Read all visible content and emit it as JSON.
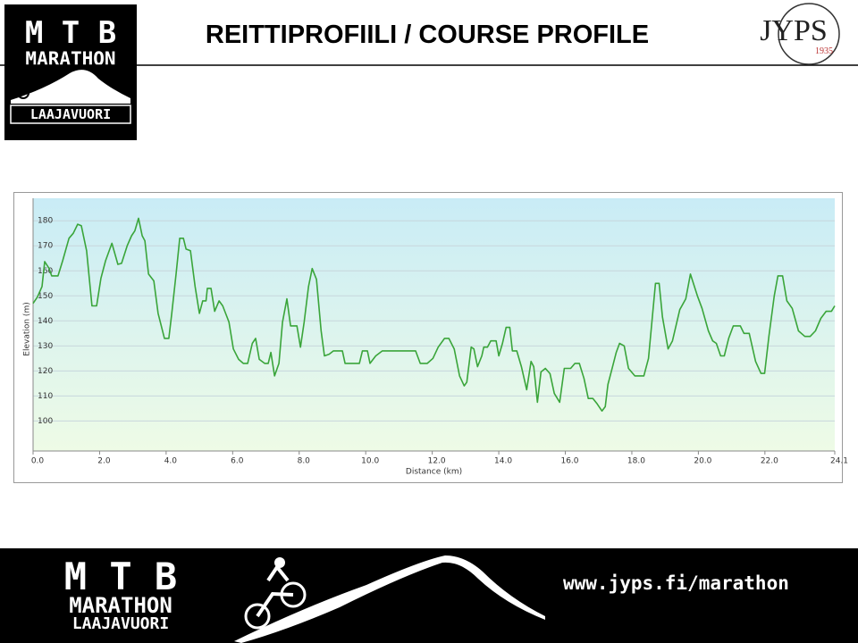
{
  "header": {
    "title": "REITTIPROFIILI / COURSE PROFILE",
    "logo": {
      "line1": "M T B",
      "line2": "MARATHON",
      "line3": "LAAJAVUORI"
    },
    "club": {
      "name": "JYPS",
      "year": "1935"
    }
  },
  "chart_data": {
    "type": "line",
    "xlabel": "Distance (km)",
    "ylabel": "Elevation (m)",
    "color": "#3aa53a",
    "grid": true,
    "xlim": [
      0,
      24.1
    ],
    "ylim": [
      88,
      189
    ],
    "xticks": [
      {
        "value": 0,
        "label": "0.0"
      },
      {
        "value": 2,
        "label": "2.0"
      },
      {
        "value": 4,
        "label": "4.0"
      },
      {
        "value": 6,
        "label": "6.0"
      },
      {
        "value": 8,
        "label": "8.0"
      },
      {
        "value": 10,
        "label": "10.0"
      },
      {
        "value": 12,
        "label": "12.0"
      },
      {
        "value": 14,
        "label": "14.0"
      },
      {
        "value": 16,
        "label": "16.0"
      },
      {
        "value": 18,
        "label": "18.0"
      },
      {
        "value": 20,
        "label": "20.0"
      },
      {
        "value": 22,
        "label": "22.0"
      },
      24.1
    ],
    "yticks": [
      100,
      110,
      120,
      130,
      140,
      150,
      160,
      170,
      180
    ],
    "x": [
      0,
      0.13,
      0.27,
      0.35,
      0.48,
      0.56,
      0.75,
      0.89,
      1.08,
      1.21,
      1.34,
      1.45,
      1.61,
      1.77,
      1.91,
      2.04,
      2.18,
      2.37,
      2.55,
      2.66,
      2.83,
      2.96,
      3.06,
      3.17,
      3.28,
      3.36,
      3.47,
      3.63,
      3.76,
      3.95,
      4.08,
      4.17,
      4.3,
      4.41,
      4.52,
      4.6,
      4.73,
      4.87,
      5.0,
      5.1,
      5.2,
      5.24,
      5.35,
      5.46,
      5.59,
      5.7,
      5.89,
      6.02,
      6.18,
      6.32,
      6.45,
      6.59,
      6.69,
      6.8,
      6.96,
      7.07,
      7.15,
      7.26,
      7.39,
      7.5,
      7.63,
      7.74,
      7.93,
      8.04,
      8.15,
      8.28,
      8.39,
      8.52,
      8.66,
      8.76,
      8.9,
      9.03,
      9.3,
      9.38,
      9.7,
      9.81,
      9.9,
      10.05,
      10.13,
      10.3,
      10.5,
      11.5,
      11.64,
      11.85,
      12.02,
      12.18,
      12.37,
      12.5,
      12.66,
      12.82,
      12.96,
      13.04,
      13.17,
      13.25,
      13.36,
      13.49,
      13.55,
      13.66,
      13.76,
      13.92,
      14.0,
      14.11,
      14.22,
      14.33,
      14.41,
      14.54,
      14.68,
      14.84,
      14.97,
      15.05,
      15.16,
      15.27,
      15.4,
      15.54,
      15.67,
      15.83,
      15.97,
      16.16,
      16.29,
      16.42,
      16.56,
      16.69,
      16.83,
      16.96,
      17.1,
      17.2,
      17.28,
      17.42,
      17.53,
      17.63,
      17.77,
      17.9,
      18.09,
      18.36,
      18.5,
      18.71,
      18.82,
      18.92,
      19.09,
      19.22,
      19.44,
      19.62,
      19.76,
      19.97,
      20.11,
      20.3,
      20.43,
      20.54,
      20.67,
      20.78,
      20.91,
      21.05,
      21.26,
      21.37,
      21.53,
      21.72,
      21.88,
      21.99,
      22.12,
      22.28,
      22.39,
      22.53,
      22.66,
      22.82,
      23.01,
      23.2,
      23.36,
      23.52,
      23.68,
      23.84,
      24.0,
      24.1
    ],
    "values": [
      147,
      149.5,
      153.7,
      163.7,
      161,
      158,
      158,
      164,
      173,
      175,
      178.6,
      178,
      168,
      146,
      146,
      157,
      164,
      171,
      162.6,
      163,
      170,
      174,
      176,
      181,
      174,
      172,
      158.7,
      156,
      143,
      133,
      133,
      143,
      158.7,
      173,
      173,
      168.7,
      168,
      153.7,
      143,
      148,
      148,
      153,
      153,
      143.8,
      148,
      146,
      139.5,
      128.8,
      124.6,
      123,
      123,
      131,
      133,
      124.6,
      123,
      123,
      127.4,
      118,
      123,
      139.5,
      148.8,
      138,
      138,
      129.5,
      139.5,
      153.7,
      160.9,
      156.6,
      136,
      126,
      126.7,
      128,
      128,
      123,
      123,
      123,
      128,
      128,
      123,
      126,
      128,
      128,
      123,
      123,
      125,
      129.5,
      133,
      133,
      128.8,
      118,
      114,
      115.5,
      129.5,
      128.8,
      121.7,
      126,
      129.5,
      129.5,
      132,
      132,
      126,
      131,
      137.4,
      137.4,
      128,
      128,
      121.7,
      112.5,
      123.8,
      121.7,
      107.5,
      119.6,
      121,
      118.9,
      111,
      107.5,
      121,
      121,
      123,
      123,
      117,
      109,
      109,
      106.8,
      104,
      105.7,
      114.6,
      121.7,
      127.4,
      131,
      130,
      121,
      118,
      118,
      125,
      155,
      155,
      141.6,
      128.8,
      132,
      144.5,
      148.8,
      158.7,
      150,
      145,
      136,
      132,
      131,
      126,
      126,
      133,
      138,
      138,
      135,
      135,
      123.8,
      119,
      119,
      133.8,
      150,
      158,
      158,
      148,
      145,
      136,
      133.8,
      133.8,
      136,
      141,
      143.8,
      143.8,
      146
    ]
  },
  "footer": {
    "logo": {
      "line1": "M T B",
      "line2": "MARATHON",
      "line3": "LAAJAVUORI"
    },
    "url": "www.jyps.fi/marathon"
  }
}
